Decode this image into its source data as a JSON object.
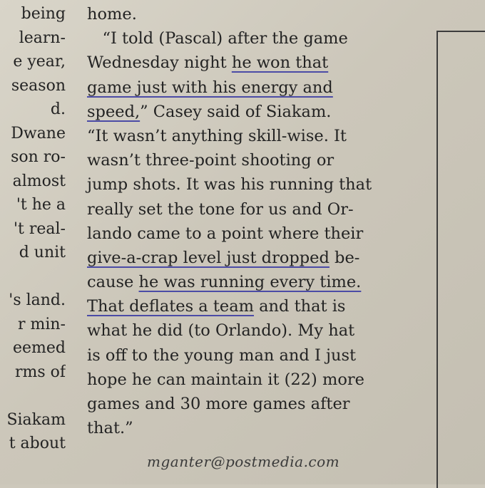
{
  "left_column": [
    "being",
    "learn-",
    "e year,",
    "season",
    "d.",
    "Dwane",
    "son ro-",
    "almost",
    "'t he a",
    "'t real-",
    "d unit",
    "",
    "'s land.",
    "r min-",
    "eemed",
    "rms of",
    "",
    "Siakam",
    "t about"
  ],
  "article": {
    "lines": [
      [
        {
          "text": "home."
        }
      ],
      [
        {
          "text": "   “I told (Pascal) after the game"
        }
      ],
      [
        {
          "text": "Wednesday night "
        },
        {
          "text": "he won that",
          "underline": true
        }
      ],
      [
        {
          "text": "game just with his energy and",
          "underline": true
        }
      ],
      [
        {
          "text": "speed,",
          "underline": true
        },
        {
          "text": "” Casey said of Siakam."
        }
      ],
      [
        {
          "text": "“It wasn’t anything skill-wise. It"
        }
      ],
      [
        {
          "text": "wasn’t three-point shooting or"
        }
      ],
      [
        {
          "text": "jump shots. It was his running that"
        }
      ],
      [
        {
          "text": "really set the tone for us and Or-"
        }
      ],
      [
        {
          "text": "lando came to a point where their"
        }
      ],
      [
        {
          "text": "give-a-crap level just dropped",
          "underline": true
        },
        {
          "text": " be-"
        }
      ],
      [
        {
          "text": "cause "
        },
        {
          "text": "he was running every time.",
          "underline": true
        }
      ],
      [
        {
          "text": "That deflates a team",
          "underline": true
        },
        {
          "text": " and that is"
        }
      ],
      [
        {
          "text": "what he did (to Orlando). My hat"
        }
      ],
      [
        {
          "text": "is off to the young man and I just"
        }
      ],
      [
        {
          "text": "hope he can maintain it (22) more"
        }
      ],
      [
        {
          "text": "games and 30 more games after"
        }
      ],
      [
        {
          "text": "that.”"
        }
      ]
    ]
  },
  "byline": "mganter@postmedia.com",
  "colors": {
    "paper": "#d3cfc3",
    "ink": "#232323",
    "pen_underline": "#4b4ba6"
  }
}
